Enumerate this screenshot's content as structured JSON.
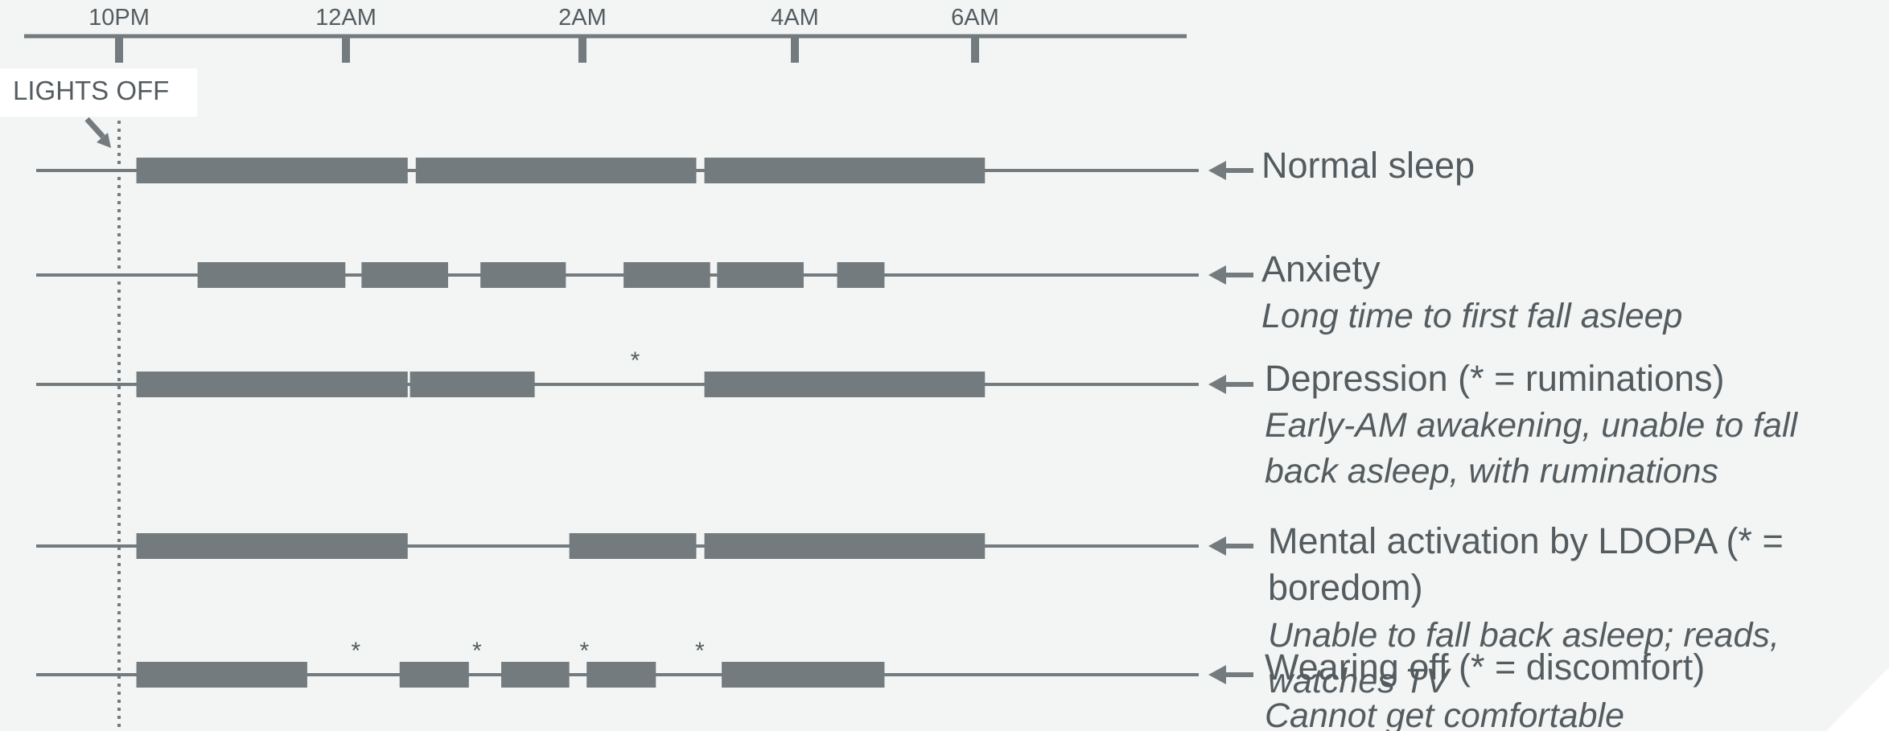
{
  "timeline": {
    "ticks": [
      {
        "label": "10PM",
        "hour": 22
      },
      {
        "label": "12AM",
        "hour": 24
      },
      {
        "label": "2AM",
        "hour": 26
      },
      {
        "label": "4AM",
        "hour": 28
      },
      {
        "label": "6AM",
        "hour": 30
      }
    ]
  },
  "lights_off": {
    "label": "LIGHTS OFF",
    "hour": 22
  },
  "rows": [
    {
      "title": "Normal sleep",
      "description": [],
      "sleep_blocks": [
        [
          22.15,
          24.5
        ],
        [
          24.57,
          27.0
        ],
        [
          27.07,
          29.5
        ]
      ],
      "stars": []
    },
    {
      "title": "Anxiety",
      "description": [
        "Long time to first fall asleep"
      ],
      "sleep_blocks": [
        [
          22.68,
          23.96
        ],
        [
          24.1,
          24.85
        ],
        [
          25.13,
          25.87
        ],
        [
          26.37,
          27.12
        ],
        [
          27.18,
          27.93
        ],
        [
          28.22,
          28.63
        ]
      ],
      "stars": []
    },
    {
      "title": "Depression (* = ruminations)",
      "description": [
        "Early-AM awakening, unable to fall",
        "back asleep, with ruminations"
      ],
      "sleep_blocks": [
        [
          22.15,
          24.5
        ],
        [
          24.52,
          25.6
        ],
        [
          27.07,
          29.5
        ]
      ],
      "stars": [
        26.47
      ]
    },
    {
      "title": "Mental activation by LDOPA (* =",
      "title_line2": "boredom)",
      "description": [
        "Unable to fall back asleep; reads,",
        "watches TV"
      ],
      "sleep_blocks": [
        [
          22.15,
          24.5
        ],
        [
          25.9,
          27.0
        ],
        [
          27.07,
          29.5
        ]
      ],
      "stars": []
    },
    {
      "title": "Wearing off (* = discomfort)",
      "description": [
        "Cannot get comfortable"
      ],
      "sleep_blocks": [
        [
          22.15,
          23.63
        ],
        [
          24.43,
          25.03
        ],
        [
          25.31,
          25.9
        ],
        [
          26.05,
          26.65
        ],
        [
          27.22,
          28.63
        ]
      ],
      "stars": [
        24.05,
        25.1,
        26.03,
        27.03
      ]
    }
  ],
  "colors": {
    "bar": "#737b7f",
    "line": "#737b7f",
    "text": "#545c60",
    "background": "#f3f5f4",
    "label_box": "#ffffff"
  }
}
